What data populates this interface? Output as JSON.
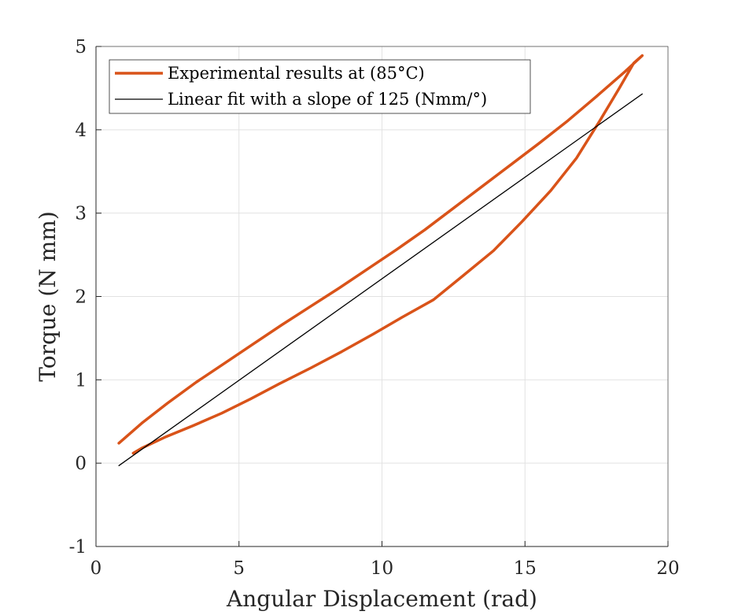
{
  "chart_data": {
    "type": "line",
    "xlabel": "Angular Displacement (rad)",
    "ylabel": "Torque (N mm)",
    "xlim": [
      0,
      20
    ],
    "ylim": [
      -1,
      5
    ],
    "xticks": [
      0,
      5,
      10,
      15,
      20
    ],
    "yticks": [
      -1,
      0,
      1,
      2,
      3,
      4,
      5
    ],
    "xtick_labels": [
      "0",
      "5",
      "10",
      "15",
      "20"
    ],
    "ytick_labels": [
      "-1",
      "0",
      "1",
      "2",
      "3",
      "4",
      "5"
    ],
    "grid": true,
    "legend_position": "top-left",
    "series": [
      {
        "name": "Experimental results at (85°C)",
        "color": "#D95319",
        "style": "thick",
        "x": [
          0.8,
          1.6,
          2.5,
          3.5,
          4.5,
          5.5,
          6.5,
          7.5,
          8.5,
          9.5,
          10.5,
          11.5,
          12.5,
          13.5,
          14.5,
          15.5,
          16.5,
          17.5,
          18.5,
          19.1,
          18.8,
          18.3,
          17.6,
          16.8,
          15.9,
          14.9,
          13.9,
          12.8,
          11.8,
          10.7,
          9.7,
          8.6,
          7.5,
          6.4,
          5.4,
          4.4,
          3.4,
          2.4,
          1.6,
          1.3
        ],
        "y": [
          0.24,
          0.48,
          0.72,
          0.97,
          1.2,
          1.43,
          1.66,
          1.88,
          2.1,
          2.33,
          2.56,
          2.8,
          3.06,
          3.32,
          3.58,
          3.84,
          4.11,
          4.4,
          4.7,
          4.89,
          4.8,
          4.5,
          4.1,
          3.66,
          3.27,
          2.9,
          2.55,
          2.24,
          1.96,
          1.75,
          1.55,
          1.34,
          1.14,
          0.95,
          0.77,
          0.6,
          0.45,
          0.31,
          0.18,
          0.12
        ]
      },
      {
        "name": "Linear fit with a slope of 125 (Nmm/°)",
        "color": "#000000",
        "style": "thin",
        "x": [
          0.8,
          19.1
        ],
        "y": [
          -0.03,
          4.43
        ]
      }
    ]
  },
  "legend": {
    "entries": [
      {
        "text": "Experimental results at (85°C)"
      },
      {
        "text": "Linear fit with a slope of 125 (Nmm/°)"
      }
    ]
  }
}
